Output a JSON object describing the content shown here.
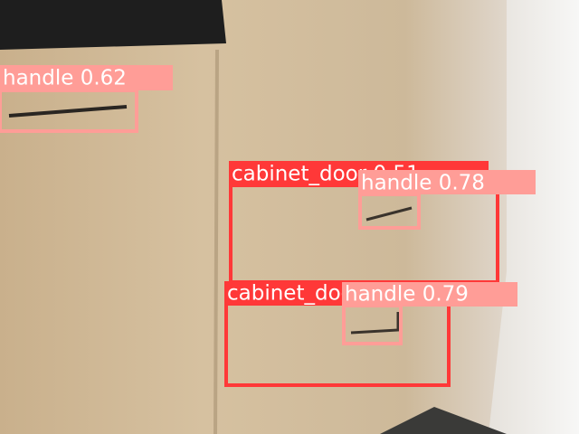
{
  "detections": [
    {
      "label": "handle 0.62"
    },
    {
      "label": "cabinet_door 0.51"
    },
    {
      "label": "cabinet_door 0.53"
    },
    {
      "label": "handle 0.78"
    },
    {
      "label": "handle 0.79"
    }
  ]
}
